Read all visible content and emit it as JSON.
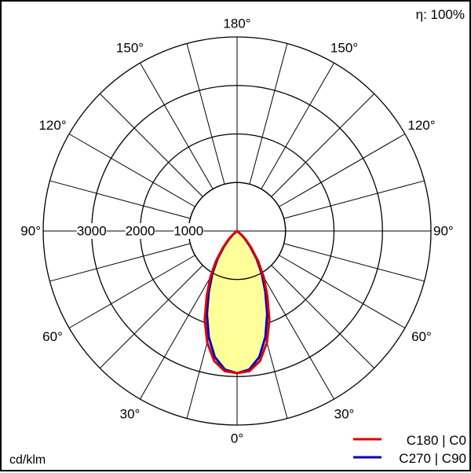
{
  "chart_data": {
    "type": "polar",
    "subtype": "luminous-intensity-distribution",
    "efficiency_label": "η: 100%",
    "unit_label": "cd/klm",
    "radial_max": 4000,
    "radial_rings": [
      1000,
      2000,
      3000,
      4000
    ],
    "radial_tick_labels": [
      "1000",
      "2000",
      "3000"
    ],
    "angle_labels": {
      "left": [
        "0°",
        "30°",
        "60°",
        "90°",
        "120°",
        "150°",
        "180°"
      ],
      "right": [
        "0°",
        "30°",
        "60°",
        "90°",
        "120°",
        "150°",
        "180°"
      ]
    },
    "angle_spokes_step_deg": 15,
    "series": [
      {
        "name": "C180 | C0",
        "color": "#dd0000",
        "gamma_deg": [
          0,
          5,
          10,
          15,
          20,
          25,
          30,
          35,
          40,
          45,
          50,
          90
        ],
        "intensity": [
          2930,
          2900,
          2720,
          2380,
          1950,
          1480,
          1100,
          760,
          460,
          260,
          110,
          0
        ]
      },
      {
        "name": "C270 | C90",
        "color": "#0000bb",
        "gamma_deg": [
          0,
          5,
          10,
          15,
          20,
          25,
          30,
          35,
          40,
          45,
          50,
          90
        ],
        "intensity": [
          2930,
          2870,
          2640,
          2260,
          1820,
          1380,
          1020,
          700,
          420,
          230,
          100,
          0
        ]
      }
    ],
    "fill_color": "#ffff99",
    "grid": true,
    "legend_position": "bottom-right"
  }
}
